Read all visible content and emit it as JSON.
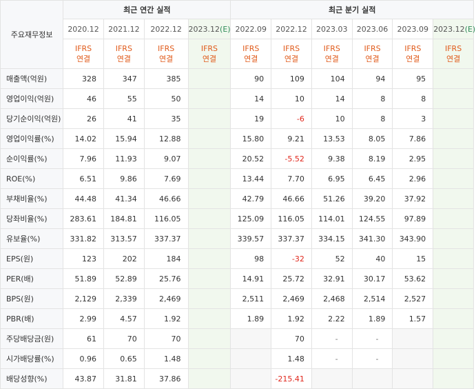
{
  "corner_label": "주요재무정보",
  "groups": {
    "annual": "최근 연간 실적",
    "quarter": "최근 분기 실적"
  },
  "periods": [
    {
      "label": "2020.12",
      "est": ""
    },
    {
      "label": "2021.12",
      "est": ""
    },
    {
      "label": "2022.12",
      "est": ""
    },
    {
      "label": "2023.12",
      "est": "(E)"
    },
    {
      "label": "2022.09",
      "est": ""
    },
    {
      "label": "2022.12",
      "est": ""
    },
    {
      "label": "2023.03",
      "est": ""
    },
    {
      "label": "2023.06",
      "est": ""
    },
    {
      "label": "2023.09",
      "est": ""
    },
    {
      "label": "2023.12",
      "est": "(E)"
    }
  ],
  "ifrs": {
    "line1": "IFRS",
    "line2": "연결"
  },
  "rows": [
    {
      "label": "매출액(억원)",
      "values": [
        "328",
        "347",
        "385",
        "",
        "90",
        "109",
        "104",
        "94",
        "95",
        ""
      ]
    },
    {
      "label": "영업이익(억원)",
      "values": [
        "46",
        "55",
        "50",
        "",
        "14",
        "10",
        "14",
        "8",
        "8",
        ""
      ]
    },
    {
      "label": "당기순이익(억원)",
      "values": [
        "26",
        "41",
        "35",
        "",
        "19",
        "-6",
        "10",
        "8",
        "3",
        ""
      ]
    },
    {
      "label": "영업이익률(%)",
      "values": [
        "14.02",
        "15.94",
        "12.88",
        "",
        "15.80",
        "9.21",
        "13.53",
        "8.05",
        "7.86",
        ""
      ]
    },
    {
      "label": "순이익률(%)",
      "values": [
        "7.96",
        "11.93",
        "9.07",
        "",
        "20.52",
        "-5.52",
        "9.38",
        "8.19",
        "2.95",
        ""
      ]
    },
    {
      "label": "ROE(%)",
      "values": [
        "6.51",
        "9.86",
        "7.69",
        "",
        "13.44",
        "7.70",
        "6.95",
        "6.45",
        "2.96",
        ""
      ]
    },
    {
      "label": "부채비율(%)",
      "values": [
        "44.48",
        "41.34",
        "46.66",
        "",
        "42.79",
        "46.66",
        "51.26",
        "39.20",
        "37.92",
        ""
      ]
    },
    {
      "label": "당좌비율(%)",
      "values": [
        "283.61",
        "184.81",
        "116.05",
        "",
        "125.09",
        "116.05",
        "114.01",
        "124.55",
        "97.89",
        ""
      ]
    },
    {
      "label": "유보율(%)",
      "values": [
        "331.82",
        "313.57",
        "337.37",
        "",
        "339.57",
        "337.37",
        "334.15",
        "341.30",
        "343.90",
        ""
      ]
    },
    {
      "label": "EPS(원)",
      "values": [
        "123",
        "202",
        "184",
        "",
        "98",
        "-32",
        "52",
        "40",
        "15",
        ""
      ]
    },
    {
      "label": "PER(배)",
      "values": [
        "51.89",
        "52.89",
        "25.76",
        "",
        "14.91",
        "25.72",
        "32.91",
        "30.17",
        "53.62",
        ""
      ]
    },
    {
      "label": "BPS(원)",
      "values": [
        "2,129",
        "2,339",
        "2,469",
        "",
        "2,511",
        "2,469",
        "2,468",
        "2,514",
        "2,527",
        ""
      ]
    },
    {
      "label": "PBR(배)",
      "values": [
        "2.99",
        "4.57",
        "1.92",
        "",
        "1.89",
        "1.92",
        "2.22",
        "1.89",
        "1.57",
        ""
      ]
    },
    {
      "label": "주당배당금(원)",
      "values": [
        "61",
        "70",
        "70",
        "",
        "",
        "70",
        "-",
        "-",
        "",
        ""
      ]
    },
    {
      "label": "시가배당률(%)",
      "values": [
        "0.96",
        "0.65",
        "1.48",
        "",
        "",
        "1.48",
        "-",
        "-",
        "",
        ""
      ]
    },
    {
      "label": "배당성향(%)",
      "values": [
        "43.87",
        "31.81",
        "37.86",
        "",
        "",
        "-215.41",
        "",
        "",
        "",
        ""
      ]
    }
  ],
  "colors": {
    "ifrs_text": "#e05a1a",
    "negative": "#e0261b",
    "estimate_bg": "#f1f8ee",
    "estimate_marker": "#2e8b57"
  }
}
